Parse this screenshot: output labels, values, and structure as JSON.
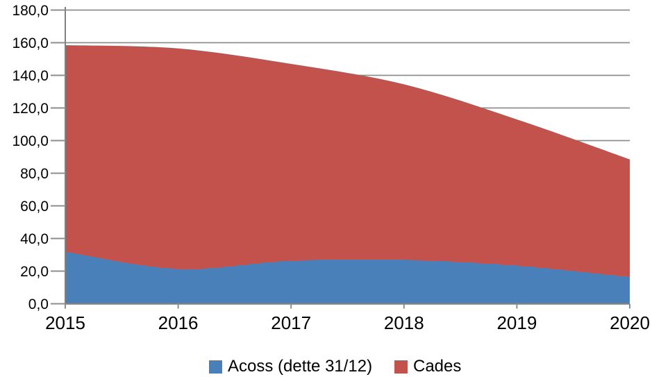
{
  "chart_data": {
    "type": "area",
    "stacked": true,
    "title": "",
    "xlabel": "",
    "ylabel": "",
    "categories": [
      "2015",
      "2016",
      "2017",
      "2018",
      "2019",
      "2020"
    ],
    "series": [
      {
        "name": "Acoss (dette 31/12)",
        "color": "#4A80BA",
        "values": [
          32.0,
          21.5,
          26.5,
          27.0,
          23.5,
          16.5
        ]
      },
      {
        "name": "Cades",
        "color": "#C4524C",
        "values": [
          126.5,
          135.0,
          120.5,
          107.5,
          89.5,
          72.0
        ]
      }
    ],
    "stacked_totals": [
      158.5,
      156.5,
      147.0,
      134.5,
      113.0,
      88.5
    ],
    "ylim": [
      0,
      180
    ],
    "y_tick_step": 20,
    "y_tick_labels": [
      "0,0",
      "20,0",
      "40,0",
      "60,0",
      "80,0",
      "100,0",
      "120,0",
      "140,0",
      "160,0",
      "180,0"
    ],
    "number_format": "decimal-comma",
    "grid": "horizontal",
    "legend_position": "bottom-center",
    "colors": {
      "gridline": "#8B8F8B",
      "axis_line": "#808080",
      "tick": "#8B8F8B",
      "text": "#000000",
      "plot_background": "#FFFFFF"
    }
  }
}
